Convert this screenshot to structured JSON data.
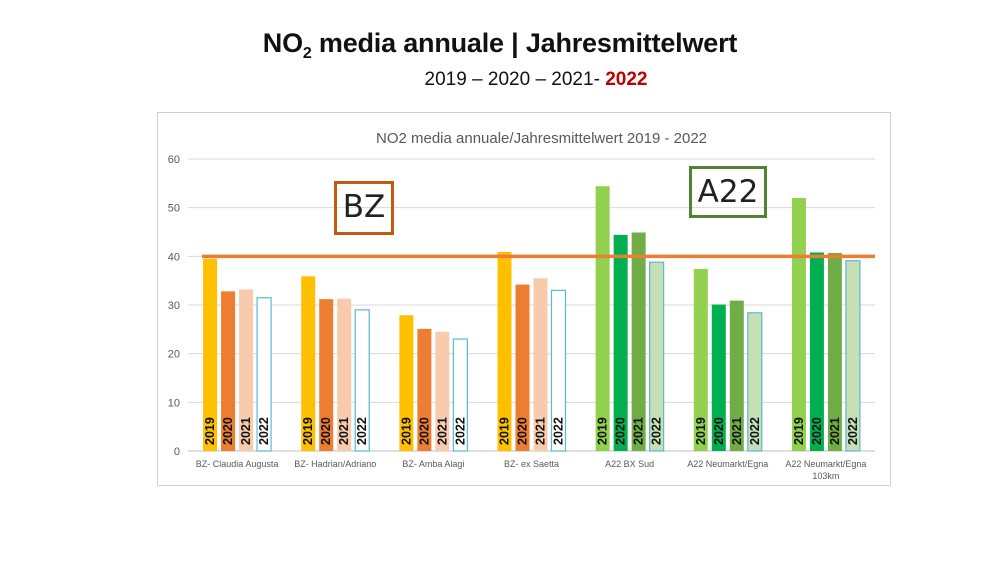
{
  "slide": {
    "title_main": "NO",
    "title_sub": "2",
    "title_rest": " media annuale | Jahresmittelwert",
    "subtitle_years": "2019 – 2020 – 2021- ",
    "subtitle_highlight": "2022"
  },
  "labels": {
    "bz": "BZ",
    "a22": "A22"
  },
  "colors": {
    "limit_line": "#ed7d31",
    "bz_box": "#c55a11",
    "a22_box": "#548235",
    "highlight_text": "#c00000"
  },
  "chart_data": {
    "type": "bar",
    "title": "NO2 media annuale/Jahresmittelwert 2019 - 2022",
    "ylim": [
      0,
      60
    ],
    "yticks": [
      0,
      10,
      20,
      30,
      40,
      50,
      60
    ],
    "grid": true,
    "reference_line": 40,
    "series": [
      {
        "name": "2019"
      },
      {
        "name": "2020"
      },
      {
        "name": "2021"
      },
      {
        "name": "2022"
      }
    ],
    "categories": [
      {
        "label": [
          "BZ- Claudia Augusta"
        ],
        "group": "BZ",
        "values": [
          39.5,
          32.8,
          33.2,
          31.5
        ]
      },
      {
        "label": [
          "BZ- Hadrian/Adriano"
        ],
        "group": "BZ",
        "values": [
          35.9,
          31.2,
          31.3,
          29.0
        ]
      },
      {
        "label": [
          "BZ- Amba Alagi"
        ],
        "group": "BZ",
        "values": [
          27.9,
          25.1,
          24.5,
          23.0
        ]
      },
      {
        "label": [
          "BZ- ex Saetta"
        ],
        "group": "BZ",
        "values": [
          40.9,
          34.2,
          35.5,
          33.0
        ]
      },
      {
        "label": [
          "A22 BX Sud"
        ],
        "group": "A22",
        "values": [
          54.4,
          44.4,
          44.9,
          38.8
        ]
      },
      {
        "label": [
          "A22 Neumarkt/Egna"
        ],
        "group": "A22",
        "values": [
          37.4,
          30.1,
          30.9,
          28.4
        ]
      },
      {
        "label": [
          "A22 Neumarkt/Egna",
          "103km"
        ],
        "group": "A22",
        "values": [
          52.0,
          40.8,
          40.7,
          39.1
        ]
      }
    ],
    "group_colors": {
      "BZ": [
        "#ffc000",
        "#ed7d31",
        "#f8cbad",
        "#ffffff"
      ],
      "A22": [
        "#92d050",
        "#00b050",
        "#70ad47",
        "#c5e0b4"
      ]
    },
    "bar_outline": "#5bb8d6"
  }
}
